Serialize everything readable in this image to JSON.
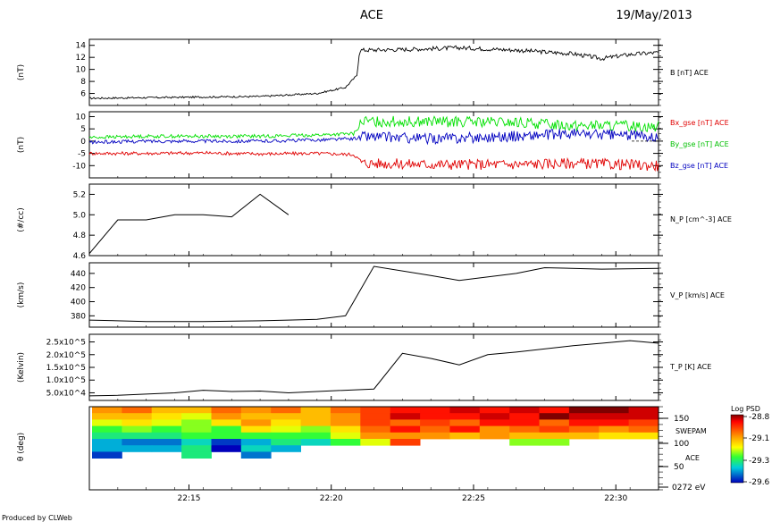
{
  "header": {
    "mission": "ACE",
    "date": "19/May/2013"
  },
  "footer": {
    "credit": "Produced by CLWeb"
  },
  "time_axis": {
    "ticks": [
      "22:15",
      "22:20",
      "22:25",
      "22:30"
    ]
  },
  "chart_data": [
    {
      "type": "line",
      "panel": "B",
      "ylabel": "(nT)",
      "yticks": [
        "14",
        "12",
        "10",
        "8",
        "6"
      ],
      "ylim": [
        4,
        15
      ],
      "series": [
        {
          "name": "B [nT] ACE",
          "color": "#000000",
          "x": [
            0,
            2,
            4,
            6,
            8,
            9,
            9.2,
            9.4,
            9.5,
            11,
            13,
            15,
            17,
            18,
            19,
            20
          ],
          "y": [
            5.2,
            5.3,
            5.4,
            5.5,
            6.0,
            7.0,
            8.0,
            9.0,
            13.2,
            13.3,
            13.6,
            13.2,
            12.6,
            11.8,
            12.5,
            12.8
          ]
        }
      ]
    },
    {
      "type": "line",
      "panel": "Bgse",
      "ylabel": "(nT)",
      "yticks": [
        "10",
        "5",
        "0",
        "-5",
        "-10"
      ],
      "ylim": [
        -15,
        12
      ],
      "series": [
        {
          "name": "Bx_gse [nT] ACE",
          "color": "#e00000",
          "x": [
            0,
            2,
            4,
            6,
            8,
            9.3,
            9.6,
            12,
            15,
            17,
            20
          ],
          "y": [
            -5,
            -5,
            -4.8,
            -5.2,
            -5,
            -5.5,
            -9,
            -9.5,
            -9.5,
            -9,
            -10
          ]
        },
        {
          "name": "By_gse [nT] ACE",
          "color": "#00e000",
          "x": [
            0,
            2,
            4,
            6,
            8,
            9.3,
            9.6,
            12,
            15,
            17,
            20
          ],
          "y": [
            1.5,
            2,
            2,
            2,
            2.5,
            3,
            8,
            8,
            7.5,
            6.5,
            6
          ]
        },
        {
          "name": "Bz_gse [nT] ACE",
          "color": "#0000c0",
          "x": [
            0,
            2,
            4,
            6,
            8,
            9.3,
            9.6,
            12,
            15,
            17,
            20
          ],
          "y": [
            -0.5,
            0,
            0,
            0,
            0.5,
            1,
            2,
            1,
            2,
            3,
            2
          ]
        }
      ]
    },
    {
      "type": "line",
      "panel": "NP",
      "ylabel": "(#/cc)",
      "yticks": [
        "5.2",
        "5.0",
        "4.8",
        "4.6"
      ],
      "ylim": [
        4.6,
        5.3
      ],
      "series": [
        {
          "name": "N_P [cm^-3] ACE",
          "color": "#000000",
          "x": [
            0,
            1,
            2,
            3,
            4,
            5,
            6,
            7
          ],
          "y": [
            4.62,
            4.95,
            4.95,
            5.0,
            5.0,
            4.98,
            5.2,
            5.0
          ]
        }
      ]
    },
    {
      "type": "line",
      "panel": "VP",
      "ylabel": "(km/s)",
      "yticks": [
        "440",
        "420",
        "400",
        "380"
      ],
      "ylim": [
        364,
        455
      ],
      "series": [
        {
          "name": "V_P [km/s] ACE",
          "color": "#000000",
          "x": [
            0,
            2,
            4,
            6,
            7,
            8,
            9,
            10,
            12,
            13,
            15,
            16,
            18,
            20
          ],
          "y": [
            374,
            372,
            372,
            373,
            374,
            375,
            380,
            450,
            437,
            430,
            440,
            448,
            446,
            447
          ]
        }
      ]
    },
    {
      "type": "line",
      "panel": "TP",
      "ylabel": "(Kelvin)",
      "yticks": [
        "2.5x10^5",
        "2.0x10^5",
        "1.5x10^5",
        "1.0x10^5",
        "5.0x10^4"
      ],
      "ylim": [
        20000,
        280000
      ],
      "series": [
        {
          "name": "T_P [K] ACE",
          "color": "#000000",
          "x": [
            0,
            1,
            3,
            4,
            5,
            6,
            7,
            8,
            10,
            11,
            12,
            13,
            14,
            15,
            17,
            18,
            19,
            20
          ],
          "y": [
            38000,
            40000,
            50000,
            60000,
            55000,
            57000,
            50000,
            55000,
            65000,
            205000,
            185000,
            160000,
            200000,
            210000,
            235000,
            245000,
            255000,
            245000
          ]
        }
      ]
    },
    {
      "type": "heatmap",
      "panel": "SWEPAM",
      "ylabel": "θ (deg)",
      "yticks": [
        "150",
        "100",
        "50",
        "0272 eV"
      ],
      "labels": [
        "SWEPAM",
        "ACE"
      ],
      "colorbar": {
        "title": "Log PSD",
        "ticks": [
          "-28.8",
          "-29.1",
          "-29.3",
          "-29.6"
        ],
        "range": [
          -29.6,
          -28.8
        ]
      },
      "columns": 19,
      "rows": 8,
      "values": [
        [
          -29.05,
          -29.0,
          -29.1,
          -29.1,
          -29.0,
          -29.05,
          -29.0,
          -29.1,
          -29.0,
          -28.95,
          -28.9,
          -28.9,
          -28.85,
          -28.9,
          -28.85,
          -28.9,
          -28.8,
          -28.75,
          -28.85
        ],
        [
          -29.1,
          -29.1,
          -29.15,
          -29.2,
          -29.05,
          -29.1,
          -29.1,
          -29.1,
          -29.05,
          -28.95,
          -28.85,
          -28.9,
          -28.9,
          -28.85,
          -28.9,
          -28.8,
          -28.85,
          -28.85,
          -28.85
        ],
        [
          -29.2,
          -29.15,
          -29.2,
          -29.25,
          -29.15,
          -29.05,
          -29.15,
          -29.1,
          -29.05,
          -28.95,
          -29.0,
          -28.95,
          -29.0,
          -28.9,
          -28.9,
          -29.0,
          -28.9,
          -28.9,
          -28.95
        ],
        [
          -29.3,
          -29.25,
          -29.3,
          -29.25,
          -29.3,
          -29.15,
          -29.2,
          -29.25,
          -29.15,
          -29.0,
          -28.9,
          -29.0,
          -28.9,
          -29.05,
          -29.0,
          -28.95,
          -29.0,
          -29.05,
          -29.0
        ],
        [
          -29.35,
          -29.35,
          -29.35,
          -29.3,
          -29.3,
          -29.3,
          -29.3,
          -29.3,
          -29.2,
          -29.05,
          -29.05,
          -29.05,
          -29.1,
          -29.05,
          -29.1,
          -29.1,
          -29.1,
          -29.15,
          -29.15
        ],
        [
          -29.45,
          -29.5,
          -29.5,
          -29.4,
          -29.55,
          -29.45,
          -29.35,
          -29.4,
          -29.3,
          -29.2,
          -28.95,
          null,
          null,
          null,
          -29.25,
          -29.25,
          null,
          null,
          null
        ],
        [
          -29.45,
          -29.45,
          -29.45,
          -29.35,
          -29.6,
          -29.4,
          -29.45,
          null,
          null,
          null,
          null,
          null,
          null,
          null,
          null,
          null,
          null,
          null,
          null
        ],
        [
          -29.55,
          null,
          null,
          -29.35,
          null,
          -29.5,
          null,
          null,
          null,
          null,
          null,
          null,
          null,
          null,
          null,
          null,
          null,
          null,
          null
        ]
      ]
    }
  ]
}
